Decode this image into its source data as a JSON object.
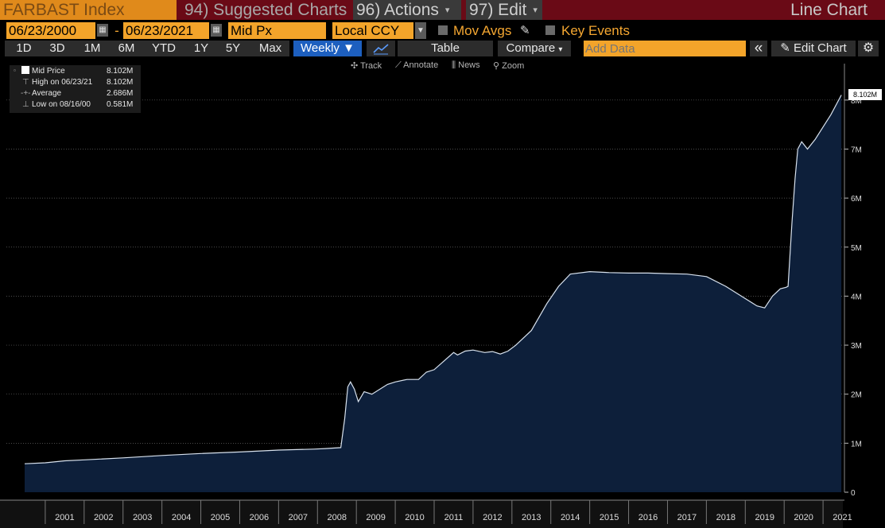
{
  "topbar": {
    "ticker": "FARBAST Index",
    "suggested": "94) Suggested Charts",
    "actions": "96) Actions",
    "edit": "97) Edit",
    "chart_type": "Line Chart",
    "caret": "▾"
  },
  "controls": {
    "start_date": "06/23/2000",
    "dash": "-",
    "end_date": "06/23/2021",
    "price_field": "Mid Px",
    "currency": "Local CCY",
    "mov_avgs": "Mov Avgs",
    "key_events": "Key Events",
    "calendar_icon": "calendar-icon",
    "pencil_icon": "pencil-icon"
  },
  "periods": [
    "1D",
    "3D",
    "1M",
    "6M",
    "YTD",
    "1Y",
    "5Y",
    "Max"
  ],
  "toolbar": {
    "frequency": "Weekly ▼",
    "table": "Table",
    "compare": "Compare",
    "add_data_placeholder": "Add Data",
    "collapse": "«",
    "edit_chart": "Edit Chart",
    "settings_icon": "gear-icon"
  },
  "tools": {
    "track": "Track",
    "annotate": "Annotate",
    "news": "News",
    "zoom": "Zoom"
  },
  "legend": {
    "rows": [
      {
        "label": "Mid Price",
        "value": "8.102M"
      },
      {
        "label": "High on 06/23/21",
        "value": "8.102M"
      },
      {
        "label": "Average",
        "value": "2.686M"
      },
      {
        "label": "Low on 08/16/00",
        "value": "0.581M"
      }
    ]
  },
  "last_value_label": "8.102M",
  "colors": {
    "accent_orange": "#f3a42a",
    "area_fill": "#0d1f3a",
    "line": "#d8e2ee",
    "active_tab": "#1d5fbf"
  },
  "chart_data": {
    "type": "area",
    "y_ticks": [
      "0",
      "1M",
      "2M",
      "3M",
      "4M",
      "5M",
      "6M",
      "7M",
      "8M"
    ],
    "ylim": [
      0,
      8500000
    ],
    "x_ticks": [
      "2001",
      "2002",
      "2003",
      "2004",
      "2005",
      "2006",
      "2007",
      "2008",
      "2009",
      "2010",
      "2011",
      "2012",
      "2013",
      "2014",
      "2015",
      "2016",
      "2017",
      "2018",
      "2019",
      "2020",
      "2021"
    ],
    "x": [
      2000.47,
      2001.0,
      2001.5,
      2002.0,
      2003.0,
      2004.0,
      2005.0,
      2006.0,
      2007.0,
      2007.9,
      2008.2,
      2008.6,
      2008.7,
      2008.78,
      2008.85,
      2008.95,
      2009.05,
      2009.2,
      2009.4,
      2009.8,
      2010.0,
      2010.3,
      2010.6,
      2010.8,
      2011.0,
      2011.5,
      2011.6,
      2011.8,
      2012.0,
      2012.3,
      2012.5,
      2012.7,
      2012.9,
      2013.1,
      2013.5,
      2013.9,
      2014.2,
      2014.5,
      2015.0,
      2015.5,
      2016.0,
      2016.5,
      2017.0,
      2017.5,
      2018.0,
      2018.5,
      2019.0,
      2019.3,
      2019.5,
      2019.7,
      2019.9,
      2020.05,
      2020.1,
      2020.2,
      2020.28,
      2020.35,
      2020.45,
      2020.6,
      2020.8,
      2021.0,
      2021.2,
      2021.47
    ],
    "series": [
      {
        "values": [
          581000,
          600000,
          640000,
          660000,
          700000,
          750000,
          790000,
          820000,
          860000,
          880000,
          890000,
          910000,
          1500000,
          2150000,
          2250000,
          2100000,
          1850000,
          2050000,
          2000000,
          2200000,
          2250000,
          2300000,
          2300000,
          2450000,
          2500000,
          2850000,
          2800000,
          2880000,
          2900000,
          2850000,
          2870000,
          2820000,
          2880000,
          3000000,
          3300000,
          3850000,
          4200000,
          4450000,
          4500000,
          4480000,
          4470000,
          4470000,
          4460000,
          4450000,
          4400000,
          4200000,
          3950000,
          3800000,
          3760000,
          4000000,
          4150000,
          4180000,
          4200000,
          5500000,
          6400000,
          7000000,
          7150000,
          7000000,
          7200000,
          7450000,
          7700000,
          8102000
        ]
      }
    ]
  }
}
